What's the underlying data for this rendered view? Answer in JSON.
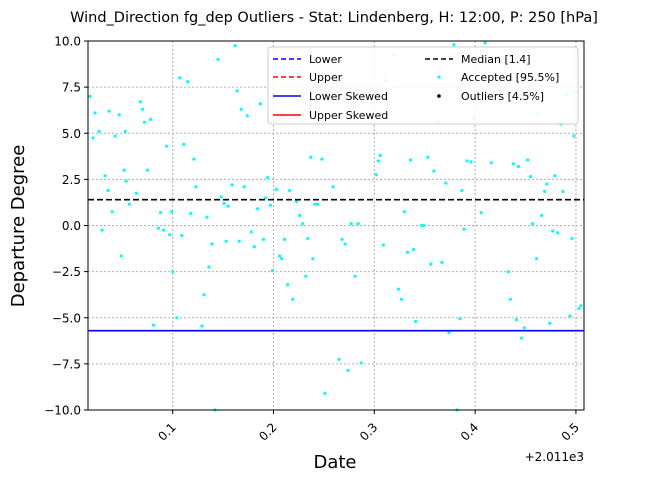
{
  "chart_data": {
    "type": "scatter",
    "title": "Wind_Direction fg_dep Outliers - Stat: Lindenberg, H: 12:00, P: 250 [hPa]",
    "xlabel": "Date",
    "ylabel": "Departure Degree",
    "x_offset_label": "+2.011e3",
    "xlim": [
      0.016,
      0.508
    ],
    "ylim": [
      -10,
      10
    ],
    "x_ticks": [
      0.1,
      0.2,
      0.3,
      0.4,
      0.5
    ],
    "x_tick_labels": [
      "0.1",
      "0.2",
      "0.3",
      "0.4",
      "0.5"
    ],
    "y_ticks": [
      -10,
      -7.5,
      -5,
      -2.5,
      0,
      2.5,
      5,
      7.5,
      10
    ],
    "y_tick_labels": [
      "−10.0",
      "−7.5",
      "−5.0",
      "−2.5",
      "0.0",
      "2.5",
      "5.0",
      "7.5",
      "10.0"
    ],
    "grid": true,
    "legend_position": "top-right",
    "colors": {
      "lower": "#0000ff",
      "upper": "#ff0000",
      "lower_skewed": "#0000ff",
      "upper_skewed": "#ff0000",
      "median": "#000000",
      "accepted": "#00ffff",
      "outliers": "#000000",
      "grid": "#b0b0b0"
    },
    "reference_lines": {
      "median": 1.4,
      "lower_skewed": -5.7
    },
    "legend": [
      {
        "key": "lower",
        "label": "Lower",
        "style": "dashed"
      },
      {
        "key": "upper",
        "label": "Upper",
        "style": "dashed"
      },
      {
        "key": "lower_skewed",
        "label": "Lower Skewed",
        "style": "solid"
      },
      {
        "key": "upper_skewed",
        "label": "Upper Skewed",
        "style": "solid"
      },
      {
        "key": "median",
        "label": "Median [1.4]",
        "style": "dashed"
      },
      {
        "key": "accepted",
        "label": "Accepted [95.5%]",
        "style": "marker"
      },
      {
        "key": "outliers",
        "label": "Outliers [4.5%]",
        "style": "marker"
      }
    ],
    "series": [
      {
        "name": "Accepted [95.5%]",
        "points": [
          [
            0.018,
            7.0
          ],
          [
            0.021,
            4.75
          ],
          [
            0.023,
            6.1
          ],
          [
            0.027,
            5.1
          ],
          [
            0.03,
            -0.25
          ],
          [
            0.033,
            2.7
          ],
          [
            0.036,
            1.9
          ],
          [
            0.037,
            6.2
          ],
          [
            0.04,
            0.75
          ],
          [
            0.043,
            4.85
          ],
          [
            0.047,
            6.0
          ],
          [
            0.049,
            -1.65
          ],
          [
            0.052,
            3.0
          ],
          [
            0.053,
            5.1
          ],
          [
            0.054,
            2.4
          ],
          [
            0.057,
            1.15
          ],
          [
            0.064,
            1.75
          ],
          [
            0.068,
            6.7
          ],
          [
            0.07,
            6.3
          ],
          [
            0.072,
            5.6
          ],
          [
            0.075,
            3.0
          ],
          [
            0.078,
            5.75
          ],
          [
            0.081,
            -5.4
          ],
          [
            0.086,
            -0.15
          ],
          [
            0.088,
            0.7
          ],
          [
            0.091,
            -0.25
          ],
          [
            0.094,
            4.3
          ],
          [
            0.097,
            -0.5
          ],
          [
            0.099,
            0.75
          ],
          [
            0.1,
            -2.5
          ],
          [
            0.104,
            -5.0
          ],
          [
            0.107,
            8.0
          ],
          [
            0.109,
            -0.55
          ],
          [
            0.111,
            4.4
          ],
          [
            0.115,
            7.8
          ],
          [
            0.118,
            0.65
          ],
          [
            0.121,
            3.6
          ],
          [
            0.123,
            2.1
          ],
          [
            0.129,
            -5.45
          ],
          [
            0.131,
            -3.75
          ],
          [
            0.134,
            0.45
          ],
          [
            0.136,
            -2.25
          ],
          [
            0.139,
            -1.0
          ],
          [
            0.142,
            -10.0
          ],
          [
            0.145,
            9.0
          ],
          [
            0.148,
            1.55
          ],
          [
            0.151,
            1.2
          ],
          [
            0.153,
            -0.85
          ],
          [
            0.155,
            1.05
          ],
          [
            0.159,
            2.2
          ],
          [
            0.162,
            9.75
          ],
          [
            0.164,
            7.3
          ],
          [
            0.166,
            -0.85
          ],
          [
            0.168,
            6.3
          ],
          [
            0.171,
            2.1
          ],
          [
            0.174,
            5.95
          ],
          [
            0.178,
            -0.35
          ],
          [
            0.181,
            -1.15
          ],
          [
            0.184,
            0.9
          ],
          [
            0.187,
            6.6
          ],
          [
            0.19,
            -0.75
          ],
          [
            0.192,
            1.5
          ],
          [
            0.194,
            2.6
          ],
          [
            0.197,
            1.1
          ],
          [
            0.199,
            -2.45
          ],
          [
            0.203,
            1.95
          ],
          [
            0.206,
            -1.65
          ],
          [
            0.208,
            -1.8
          ],
          [
            0.211,
            -0.75
          ],
          [
            0.214,
            -3.2
          ],
          [
            0.216,
            1.9
          ],
          [
            0.219,
            -4.0
          ],
          [
            0.223,
            1.3
          ],
          [
            0.226,
            0.55
          ],
          [
            0.229,
            0.1
          ],
          [
            0.232,
            -2.75
          ],
          [
            0.234,
            -0.7
          ],
          [
            0.237,
            3.7
          ],
          [
            0.239,
            -1.8
          ],
          [
            0.241,
            1.15
          ],
          [
            0.244,
            1.15
          ],
          [
            0.248,
            3.6
          ],
          [
            0.251,
            -9.1
          ],
          [
            0.259,
            2.1
          ],
          [
            0.265,
            -7.25
          ],
          [
            0.268,
            -0.75
          ],
          [
            0.271,
            -1.0
          ],
          [
            0.274,
            -7.85
          ],
          [
            0.277,
            0.1
          ],
          [
            0.281,
            -2.75
          ],
          [
            0.284,
            0.1
          ],
          [
            0.287,
            -7.45
          ],
          [
            0.302,
            2.75
          ],
          [
            0.304,
            3.5
          ],
          [
            0.306,
            3.8
          ],
          [
            0.309,
            -1.05
          ],
          [
            0.311,
            7.85
          ],
          [
            0.319,
            9.25
          ],
          [
            0.324,
            -3.45
          ],
          [
            0.327,
            -4.0
          ],
          [
            0.33,
            0.75
          ],
          [
            0.333,
            -1.45
          ],
          [
            0.336,
            3.55
          ],
          [
            0.339,
            -1.3
          ],
          [
            0.341,
            -5.2
          ],
          [
            0.347,
            0.0
          ],
          [
            0.349,
            0.0
          ],
          [
            0.353,
            3.7
          ],
          [
            0.356,
            -2.1
          ],
          [
            0.359,
            2.95
          ],
          [
            0.363,
            5.6
          ],
          [
            0.367,
            -2.0
          ],
          [
            0.371,
            2.3
          ],
          [
            0.374,
            -5.8
          ],
          [
            0.379,
            9.8
          ],
          [
            0.382,
            -10.0
          ],
          [
            0.385,
            -5.05
          ],
          [
            0.387,
            1.9
          ],
          [
            0.389,
            -0.2
          ],
          [
            0.392,
            3.5
          ],
          [
            0.396,
            3.45
          ],
          [
            0.399,
            5.8
          ],
          [
            0.406,
            0.7
          ],
          [
            0.41,
            9.9
          ],
          [
            0.416,
            3.4
          ],
          [
            0.433,
            -2.5
          ],
          [
            0.435,
            -4.0
          ],
          [
            0.438,
            3.35
          ],
          [
            0.441,
            -5.1
          ],
          [
            0.443,
            3.2
          ],
          [
            0.446,
            -6.1
          ],
          [
            0.449,
            -5.55
          ],
          [
            0.452,
            3.55
          ],
          [
            0.455,
            2.65
          ],
          [
            0.457,
            0.1
          ],
          [
            0.461,
            -1.8
          ],
          [
            0.463,
            6.1
          ],
          [
            0.466,
            0.55
          ],
          [
            0.469,
            1.85
          ],
          [
            0.471,
            2.25
          ],
          [
            0.474,
            -5.3
          ],
          [
            0.477,
            -0.3
          ],
          [
            0.479,
            2.7
          ],
          [
            0.482,
            -0.4
          ],
          [
            0.485,
            5.5
          ],
          [
            0.487,
            1.85
          ],
          [
            0.491,
            7.1
          ],
          [
            0.494,
            -4.9
          ],
          [
            0.496,
            -0.7
          ],
          [
            0.498,
            4.85
          ],
          [
            0.5,
            7.25
          ],
          [
            0.503,
            -4.5
          ],
          [
            0.505,
            -4.35
          ]
        ]
      }
    ]
  }
}
